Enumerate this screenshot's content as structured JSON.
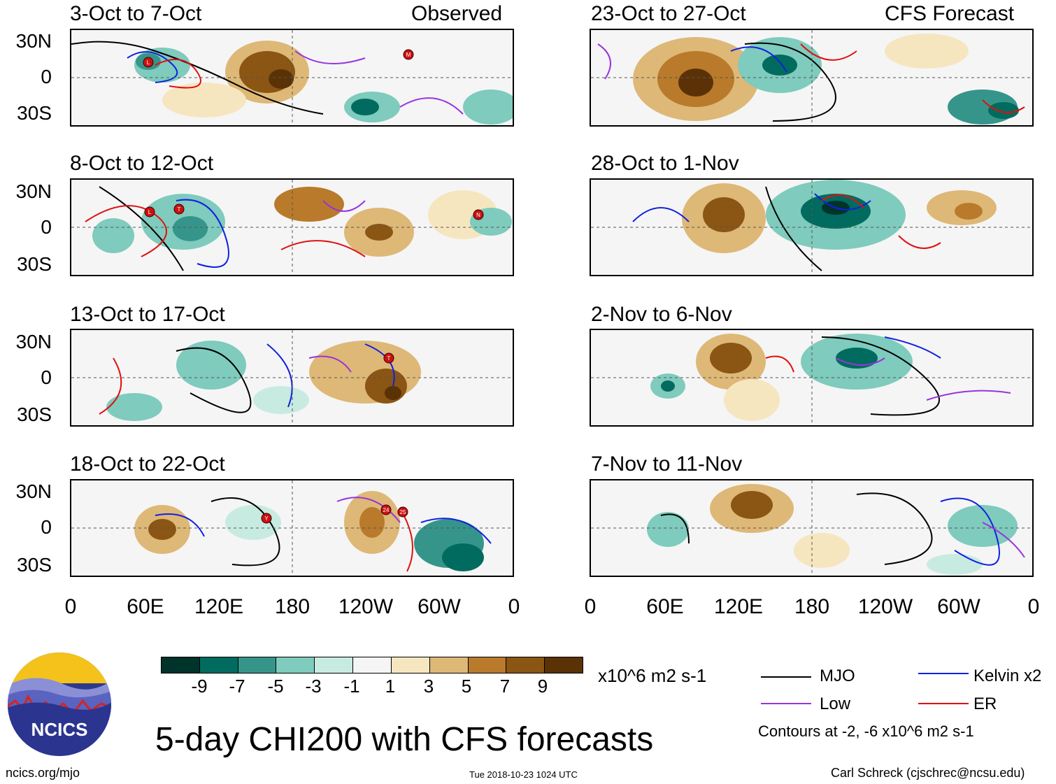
{
  "panels": [
    {
      "title": "3-Oct to 7-Oct",
      "tag": "Observed"
    },
    {
      "title": "8-Oct to 12-Oct",
      "tag": ""
    },
    {
      "title": "13-Oct to 17-Oct",
      "tag": ""
    },
    {
      "title": "18-Oct to 22-Oct",
      "tag": ""
    },
    {
      "title": "23-Oct to 27-Oct",
      "tag": "CFS Forecast"
    },
    {
      "title": "28-Oct to 1-Nov",
      "tag": ""
    },
    {
      "title": "2-Nov to 6-Nov",
      "tag": ""
    },
    {
      "title": "7-Nov to 11-Nov",
      "tag": ""
    }
  ],
  "lat_labels": [
    "30N",
    "0",
    "30S"
  ],
  "lon_labels": [
    "0",
    "60E",
    "120E",
    "180",
    "120W",
    "60W",
    "0"
  ],
  "colorbar": {
    "colors": [
      "#00332a",
      "#006b5e",
      "#36958a",
      "#7fcbbd",
      "#c8ebe1",
      "#f5f5f5",
      "#f6e6c0",
      "#deb877",
      "#b97a2b",
      "#8b5514",
      "#5a3206"
    ],
    "labels": [
      "-9",
      "-7",
      "-5",
      "-3",
      "-1",
      "1",
      "3",
      "5",
      "7",
      "9"
    ],
    "units": "x10^6 m2 s-1"
  },
  "legend": {
    "mjo": "MJO",
    "kelvin": "Kelvin x2",
    "low": "Low",
    "er": "ER",
    "contours": "Contours at -2, -6 x10^6 m2 s-1",
    "colors": {
      "mjo": "#000000",
      "kelvin": "#1020e0",
      "low": "#9933dd",
      "er": "#e01010"
    }
  },
  "logo": {
    "text": "NCICS"
  },
  "main_title": "5-day CHI200 with CFS forecasts",
  "footer": {
    "left": "ncics.org/mjo",
    "center": "Tue 2018-10-23 1024 UTC",
    "right": "Carl Schreck (cjschrec@ncsu.edu)"
  },
  "tc_markers": [
    {
      "panel": 0,
      "label": "L"
    },
    {
      "panel": 0,
      "label": "M"
    },
    {
      "panel": 1,
      "label": "L"
    },
    {
      "panel": 1,
      "label": "T"
    },
    {
      "panel": 1,
      "label": "N"
    },
    {
      "panel": 2,
      "label": "T"
    },
    {
      "panel": 3,
      "label": "Y"
    },
    {
      "panel": 3,
      "label": "24"
    },
    {
      "panel": 3,
      "label": "25"
    }
  ]
}
